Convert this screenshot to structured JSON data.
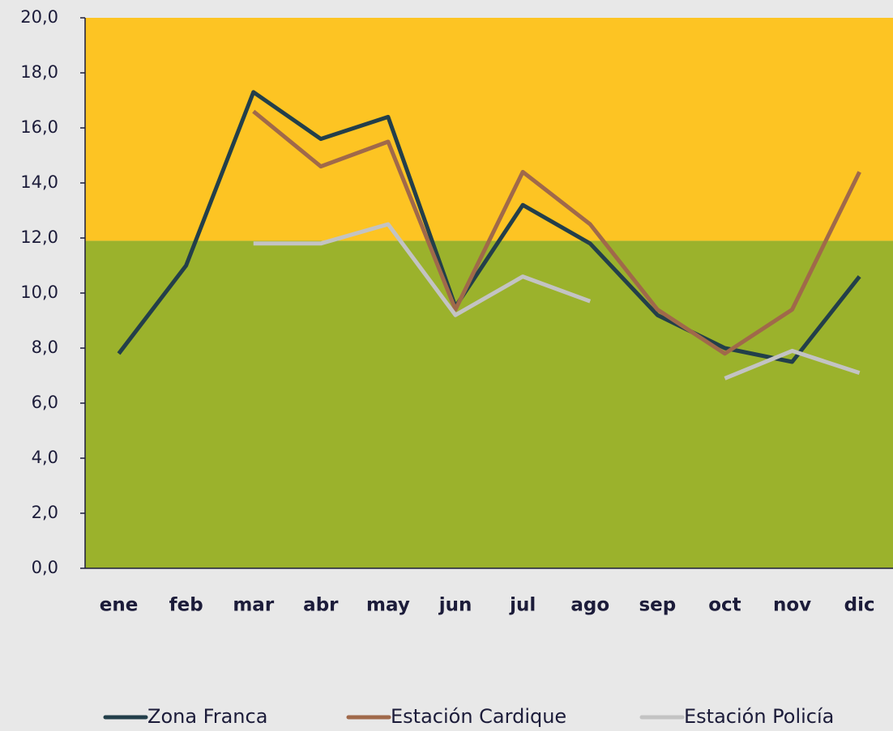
{
  "chart_data": {
    "type": "line",
    "categories": [
      "ene",
      "feb",
      "mar",
      "abr",
      "may",
      "jun",
      "jul",
      "ago",
      "sep",
      "oct",
      "nov",
      "dic"
    ],
    "series": [
      {
        "name": "Zona Franca",
        "color": "#233f4a",
        "values": [
          7.8,
          11.0,
          17.3,
          15.6,
          16.4,
          9.5,
          13.2,
          11.8,
          9.2,
          8.0,
          7.5,
          10.6
        ]
      },
      {
        "name": "Estación Cardique",
        "color": "#a0694a",
        "values": [
          null,
          null,
          16.6,
          14.6,
          15.5,
          9.4,
          14.4,
          12.5,
          9.4,
          7.8,
          9.4,
          14.4
        ]
      },
      {
        "name": "Estación Policía",
        "color": "#c3c3c3",
        "values": [
          null,
          null,
          11.8,
          11.8,
          12.5,
          9.2,
          10.6,
          9.7,
          null,
          6.9,
          7.9,
          7.1
        ]
      }
    ],
    "bands": [
      {
        "from": 0,
        "to": 11.9,
        "color": "#9bb22c"
      },
      {
        "from": 11.9,
        "to": 20,
        "color": "#fdc423"
      }
    ],
    "ylim": [
      0,
      20
    ],
    "yticks": [
      {
        "value": 0,
        "label": "0,0"
      },
      {
        "value": 2,
        "label": "2,0"
      },
      {
        "value": 4,
        "label": "4,0"
      },
      {
        "value": 6,
        "label": "6,0"
      },
      {
        "value": 8,
        "label": "8,0"
      },
      {
        "value": 10,
        "label": "10,0"
      },
      {
        "value": 12,
        "label": "12,0"
      },
      {
        "value": 14,
        "label": "14,0"
      },
      {
        "value": 16,
        "label": "16,0"
      },
      {
        "value": 18,
        "label": "18,0"
      },
      {
        "value": 20,
        "label": "20,0"
      }
    ],
    "legend": "bottom"
  }
}
